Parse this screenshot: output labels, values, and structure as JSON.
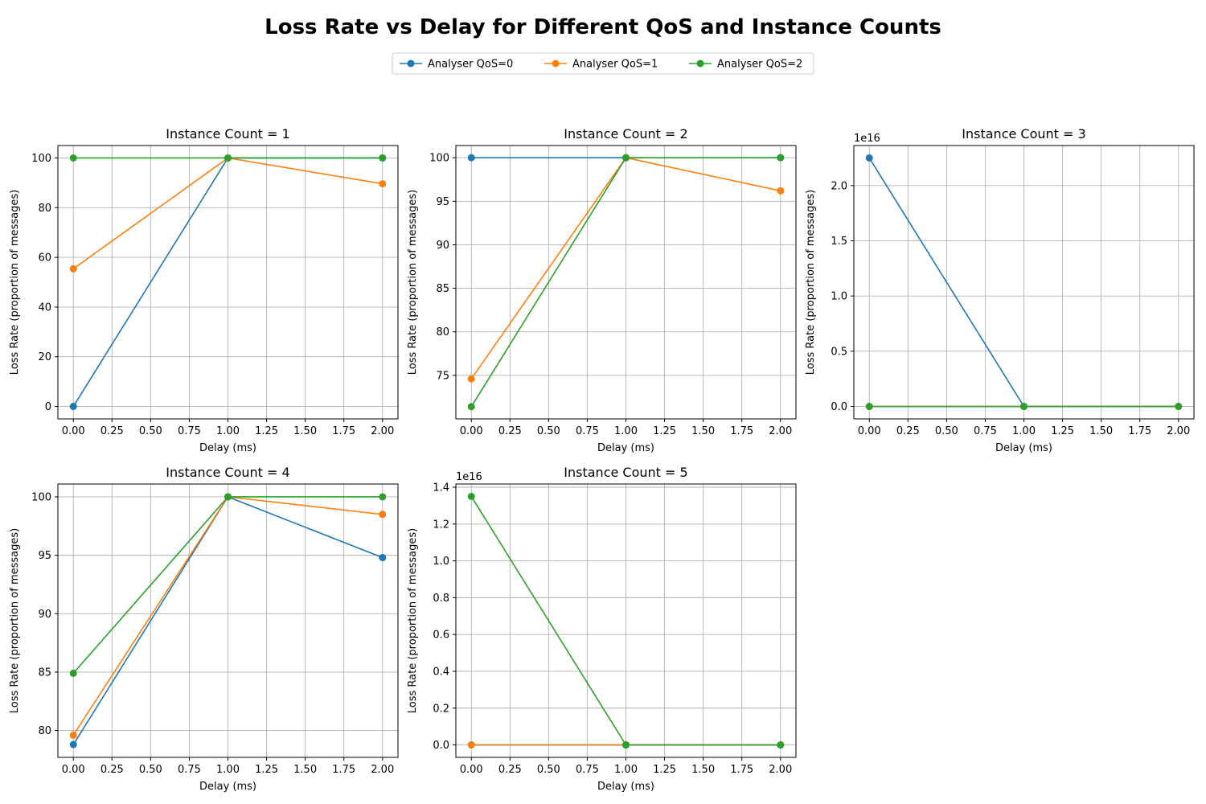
{
  "figure": {
    "title": "Loss Rate vs Delay for Different QoS and Instance Counts"
  },
  "legend": {
    "items": [
      {
        "label": "Analyser QoS=0",
        "color": "#1f77b4"
      },
      {
        "label": "Analyser QoS=1",
        "color": "#ff7f0e"
      },
      {
        "label": "Analyser QoS=2",
        "color": "#2ca02c"
      }
    ]
  },
  "chart_data": [
    {
      "type": "line",
      "title": "Instance Count = 1",
      "xlabel": "Delay (ms)",
      "ylabel": "Loss Rate (proportion of messages)",
      "x": [
        0,
        1,
        2
      ],
      "xlim": [
        -0.1,
        2.1
      ],
      "xticks": [
        0,
        0.25,
        0.5,
        0.75,
        1.0,
        1.25,
        1.5,
        1.75,
        2.0
      ],
      "xtick_labels": [
        "0.00",
        "0.25",
        "0.50",
        "0.75",
        "1.00",
        "1.25",
        "1.50",
        "1.75",
        "2.00"
      ],
      "ylim": [
        -5,
        105
      ],
      "yticks": [
        0,
        20,
        40,
        60,
        80,
        100
      ],
      "ytick_labels": [
        "0",
        "20",
        "40",
        "60",
        "80",
        "100"
      ],
      "offset_text": "",
      "grid": true,
      "series": [
        {
          "name": "Analyser QoS=0",
          "values": [
            0,
            100,
            100
          ]
        },
        {
          "name": "Analyser QoS=1",
          "values": [
            55.4,
            100,
            89.6
          ]
        },
        {
          "name": "Analyser QoS=2",
          "values": [
            100,
            100,
            100
          ]
        }
      ]
    },
    {
      "type": "line",
      "title": "Instance Count = 2",
      "xlabel": "Delay (ms)",
      "ylabel": "Loss Rate (proportion of messages)",
      "x": [
        0,
        1,
        2
      ],
      "xlim": [
        -0.1,
        2.1
      ],
      "xticks": [
        0,
        0.25,
        0.5,
        0.75,
        1.0,
        1.25,
        1.5,
        1.75,
        2.0
      ],
      "xtick_labels": [
        "0.00",
        "0.25",
        "0.50",
        "0.75",
        "1.00",
        "1.25",
        "1.50",
        "1.75",
        "2.00"
      ],
      "ylim": [
        70.0,
        101.4
      ],
      "yticks": [
        75,
        80,
        85,
        90,
        95,
        100
      ],
      "ytick_labels": [
        "75",
        "80",
        "85",
        "90",
        "95",
        "100"
      ],
      "offset_text": "",
      "grid": true,
      "series": [
        {
          "name": "Analyser QoS=0",
          "values": [
            100,
            100,
            100
          ]
        },
        {
          "name": "Analyser QoS=1",
          "values": [
            74.6,
            100,
            96.2
          ]
        },
        {
          "name": "Analyser QoS=2",
          "values": [
            71.4,
            100,
            100
          ]
        }
      ]
    },
    {
      "type": "line",
      "title": "Instance Count = 3",
      "xlabel": "Delay (ms)",
      "ylabel": "Loss Rate (proportion of messages)",
      "x": [
        0,
        1,
        2
      ],
      "xlim": [
        -0.1,
        2.1
      ],
      "xticks": [
        0,
        0.25,
        0.5,
        0.75,
        1.0,
        1.25,
        1.5,
        1.75,
        2.0
      ],
      "xtick_labels": [
        "0.00",
        "0.25",
        "0.50",
        "0.75",
        "1.00",
        "1.25",
        "1.50",
        "1.75",
        "2.00"
      ],
      "ylim": [
        -0.1125,
        2.3625
      ],
      "yticks": [
        0,
        0.5,
        1.0,
        1.5,
        2.0
      ],
      "ytick_labels": [
        "0.0",
        "0.5",
        "1.0",
        "1.5",
        "2.0"
      ],
      "offset_text": "1e16",
      "grid": true,
      "series": [
        {
          "name": "Analyser QoS=0",
          "values": [
            2.25,
            0,
            0
          ]
        },
        {
          "name": "Analyser QoS=1",
          "values": [
            0,
            0,
            0
          ]
        },
        {
          "name": "Analyser QoS=2",
          "values": [
            0,
            0,
            0
          ]
        }
      ]
    },
    {
      "type": "line",
      "title": "Instance Count = 4",
      "xlabel": "Delay (ms)",
      "ylabel": "Loss Rate (proportion of messages)",
      "x": [
        0,
        1,
        2
      ],
      "xlim": [
        -0.1,
        2.1
      ],
      "xticks": [
        0,
        0.25,
        0.5,
        0.75,
        1.0,
        1.25,
        1.5,
        1.75,
        2.0
      ],
      "xtick_labels": [
        "0.00",
        "0.25",
        "0.50",
        "0.75",
        "1.00",
        "1.25",
        "1.50",
        "1.75",
        "2.00"
      ],
      "ylim": [
        77.7,
        101.1
      ],
      "yticks": [
        80,
        85,
        90,
        95,
        100
      ],
      "ytick_labels": [
        "80",
        "85",
        "90",
        "95",
        "100"
      ],
      "offset_text": "",
      "grid": true,
      "series": [
        {
          "name": "Analyser QoS=0",
          "values": [
            78.8,
            100,
            94.8
          ]
        },
        {
          "name": "Analyser QoS=1",
          "values": [
            79.6,
            100,
            98.5
          ]
        },
        {
          "name": "Analyser QoS=2",
          "values": [
            84.9,
            100,
            100
          ]
        }
      ]
    },
    {
      "type": "line",
      "title": "Instance Count = 5",
      "xlabel": "Delay (ms)",
      "ylabel": "Loss Rate (proportion of messages)",
      "x": [
        0,
        1,
        2
      ],
      "xlim": [
        -0.1,
        2.1
      ],
      "xticks": [
        0,
        0.25,
        0.5,
        0.75,
        1.0,
        1.25,
        1.5,
        1.75,
        2.0
      ],
      "xtick_labels": [
        "0.00",
        "0.25",
        "0.50",
        "0.75",
        "1.00",
        "1.25",
        "1.50",
        "1.75",
        "2.00"
      ],
      "ylim": [
        -0.0675,
        1.4175
      ],
      "yticks": [
        0,
        0.2,
        0.4,
        0.6,
        0.8,
        1.0,
        1.2,
        1.4
      ],
      "ytick_labels": [
        "0.0",
        "0.2",
        "0.4",
        "0.6",
        "0.8",
        "1.0",
        "1.2",
        "1.4"
      ],
      "offset_text": "1e16",
      "grid": true,
      "series": [
        {
          "name": "Analyser QoS=0",
          "values": [
            0,
            0,
            0
          ]
        },
        {
          "name": "Analyser QoS=1",
          "values": [
            0,
            0,
            0
          ]
        },
        {
          "name": "Analyser QoS=2",
          "values": [
            1.35,
            0,
            0
          ]
        }
      ]
    }
  ]
}
